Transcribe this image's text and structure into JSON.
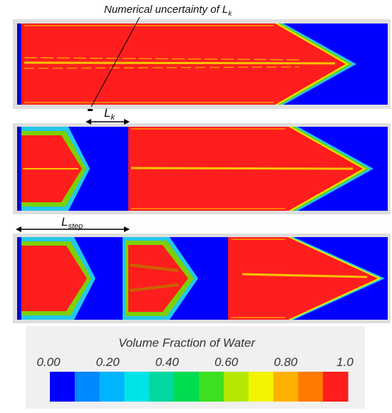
{
  "annotations": {
    "uncertainty_prefix": "Numerical uncertainty of ",
    "uncertainty_symbol": "L",
    "uncertainty_sub": "k",
    "lk_symbol": "L",
    "lk_sub": "k",
    "lstep_symbol": "L",
    "lstep_sub": "step"
  },
  "legend": {
    "title": "Volume Fraction of Water",
    "ticks": [
      "0.00",
      "0.20",
      "0.40",
      "0.60",
      "0.80",
      "1.0"
    ],
    "colors": [
      "#0000ff",
      "#0088ff",
      "#00b4ff",
      "#00e4e8",
      "#00d8a0",
      "#00dc50",
      "#3ce020",
      "#b4e800",
      "#f4f400",
      "#ffb000",
      "#ff7a00",
      "#ff1e1e"
    ]
  },
  "colors": {
    "water": "#ff1e1e",
    "air": "#0000ff",
    "interface_cyan": "#22c8e8",
    "interface_green": "#7cd000",
    "interface_yellow": "#f0e800",
    "interface_orange": "#ff9a00",
    "panel_frame": "#dcdcdc"
  }
}
